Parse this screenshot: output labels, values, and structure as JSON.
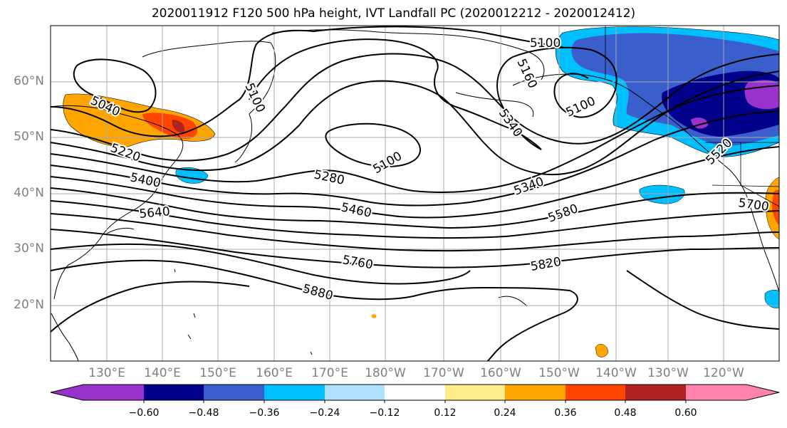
{
  "title": "2020011912 F120 500 hPa height, IVT Landfall PC (2020012212 - 2020012412)",
  "lat_labels": [
    "60°N",
    "50°N",
    "40°N",
    "30°N",
    "20°N"
  ],
  "lon_labels": [
    "130°E",
    "140°E",
    "150°E",
    "160°E",
    "170°E",
    "180°W",
    "170°W",
    "160°W",
    "150°W",
    "140°W",
    "130°W",
    "120°W"
  ],
  "contour_labels": [
    "5040",
    "5100",
    "5100",
    "5160",
    "5100",
    "5100",
    "5220",
    "5400",
    "5280",
    "5340",
    "5340",
    "5520",
    "5640",
    "5460",
    "5580",
    "5700",
    "5760",
    "5820",
    "5880"
  ],
  "colorbar": {
    "tick_labels": [
      "−0.60",
      "−0.48",
      "−0.36",
      "−0.24",
      "−0.12",
      "0.12",
      "0.24",
      "0.36",
      "0.48",
      "0.60"
    ],
    "colors": [
      "#9932cc",
      "#00008b",
      "#3a5fcd",
      "#00bfff",
      "#b0e2ff",
      "#ffffff",
      "#ffec8b",
      "#ffa500",
      "#ff4500",
      "#b22222",
      "#ff83ac"
    ]
  },
  "colors": {
    "gridline": "#a9a9a9",
    "contour": "#000000",
    "label_gray": "#7f7f7f"
  }
}
